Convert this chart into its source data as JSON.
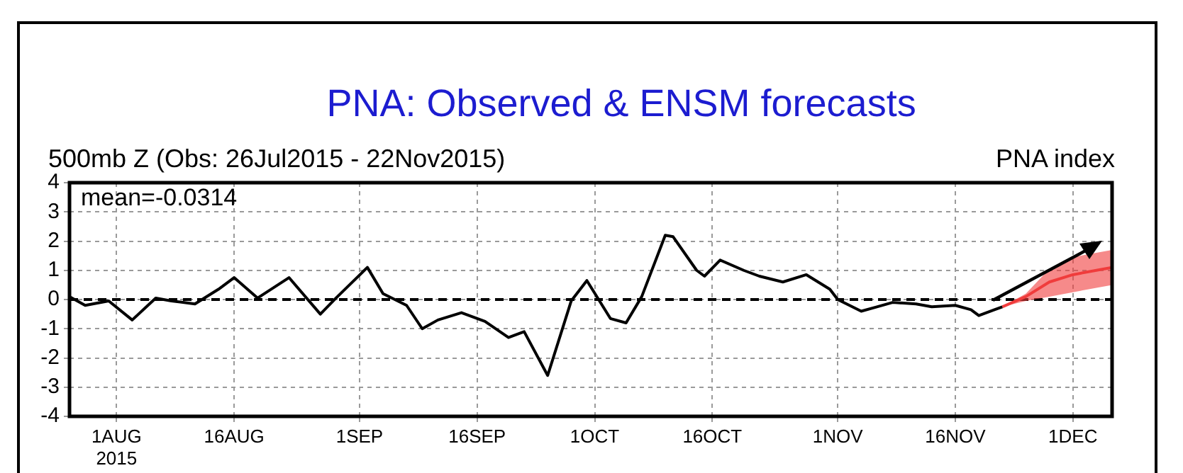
{
  "chart_data": {
    "type": "line",
    "title": "PNA: Observed & ENSM forecasts",
    "subtitle": "500mb Z (Obs: 26Jul2015 - 22Nov2015)",
    "annotations": [
      "mean=-0.0314",
      "PNA index"
    ],
    "series": [
      {
        "color": "#000000",
        "x": [
          "2015-07-26",
          "2015-07-28",
          "2015-07-31",
          "2015-08-03",
          "2015-08-06",
          "2015-08-08",
          "2015-08-11",
          "2015-08-14",
          "2015-08-16",
          "2015-08-19",
          "2015-08-23",
          "2015-08-27",
          "2015-08-29",
          "2015-09-02",
          "2015-09-04",
          "2015-09-07",
          "2015-09-09",
          "2015-09-11",
          "2015-09-14",
          "2015-09-17",
          "2015-09-20",
          "2015-09-22",
          "2015-09-25",
          "2015-09-28",
          "2015-09-30",
          "2015-10-03",
          "2015-10-05",
          "2015-10-07",
          "2015-10-10",
          "2015-10-11",
          "2015-10-14",
          "2015-10-15",
          "2015-10-17",
          "2015-10-20",
          "2015-10-22",
          "2015-10-25",
          "2015-10-28",
          "2015-10-31",
          "2015-11-01",
          "2015-11-04",
          "2015-11-06",
          "2015-11-08",
          "2015-11-11",
          "2015-11-13",
          "2015-11-16",
          "2015-11-18",
          "2015-11-19",
          "2015-11-21",
          "2015-11-22"
        ],
        "values": [
          0.1,
          -0.2,
          -0.05,
          -0.7,
          0.05,
          -0.05,
          -0.15,
          0.35,
          0.75,
          0.05,
          0.75,
          -0.5,
          0.05,
          1.1,
          0.2,
          -0.2,
          -1.0,
          -0.7,
          -0.45,
          -0.75,
          -1.3,
          -1.1,
          -2.6,
          -0.05,
          0.65,
          -0.65,
          -0.8,
          0.1,
          2.2,
          2.15,
          1.0,
          0.8,
          1.35,
          1.0,
          0.8,
          0.6,
          0.85,
          0.35,
          0.0,
          -0.4,
          -0.25,
          -0.1,
          -0.15,
          -0.25,
          -0.2,
          -0.35,
          -0.55,
          -0.35,
          -0.25
        ]
      },
      {
        "color": "#f03c3c",
        "x": [
          "2015-11-22",
          "2015-11-25",
          "2015-11-28",
          "2015-12-01",
          "2015-12-04",
          "2015-12-06"
        ],
        "values": [
          -0.25,
          0.1,
          0.6,
          0.85,
          1.0,
          1.1
        ],
        "lower": [
          -0.25,
          -0.05,
          0.1,
          0.25,
          0.4,
          0.5
        ],
        "upper": [
          -0.25,
          0.2,
          1.05,
          1.45,
          1.6,
          1.7
        ]
      }
    ],
    "xlim": [
      "2015-07-26",
      "2015-12-06"
    ],
    "xticks": [
      {
        "value": "2015-08-01",
        "label": "1AUG\n2015"
      },
      {
        "value": "2015-08-16",
        "label": "16AUG"
      },
      {
        "value": "2015-09-01",
        "label": "1SEP"
      },
      {
        "value": "2015-09-16",
        "label": "16SEP"
      },
      {
        "value": "2015-10-01",
        "label": "1OCT"
      },
      {
        "value": "2015-10-16",
        "label": "16OCT"
      },
      {
        "value": "2015-11-01",
        "label": "1NOV"
      },
      {
        "value": "2015-11-16",
        "label": "16NOV"
      },
      {
        "value": "2015-12-01",
        "label": "1DEC"
      }
    ],
    "ylim": [
      -4,
      4
    ],
    "yticks": [
      -4,
      -3,
      -2,
      -1,
      0,
      1,
      2,
      3,
      4
    ],
    "ref_lines": [
      {
        "axis": "y",
        "value": 0,
        "color": "#000000",
        "line_style": "dashed"
      }
    ],
    "grid": true,
    "legend": false,
    "marker": "none",
    "line_style": "solid"
  }
}
